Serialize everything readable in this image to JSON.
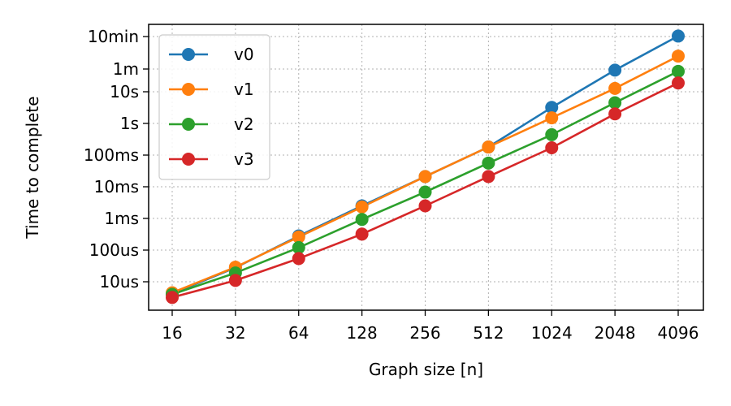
{
  "chart_data": {
    "type": "line",
    "xlabel": "Graph size [n]",
    "ylabel": "Time to complete",
    "x_scale": "log2",
    "y_scale": "log",
    "categories": [
      "16",
      "32",
      "64",
      "128",
      "256",
      "512",
      "1024",
      "2048",
      "4096"
    ],
    "x": [
      16,
      32,
      64,
      128,
      256,
      512,
      1024,
      2048,
      4096
    ],
    "y_ticks": [
      {
        "label": "10us",
        "seconds": 1e-05
      },
      {
        "label": "100us",
        "seconds": 0.0001
      },
      {
        "label": "1ms",
        "seconds": 0.001
      },
      {
        "label": "10ms",
        "seconds": 0.01
      },
      {
        "label": "100ms",
        "seconds": 0.1
      },
      {
        "label": "1s",
        "seconds": 1
      },
      {
        "label": "10s",
        "seconds": 10
      },
      {
        "label": "1m",
        "seconds": 60
      },
      {
        "label": "10min",
        "seconds": 600
      }
    ],
    "ylim_seconds": [
      3.2e-06,
      1200
    ],
    "grid": true,
    "legend_position": "top-left",
    "series": [
      {
        "name": "v0",
        "color": "#1f77b4",
        "values": [
          4.2e-06,
          2.8e-05,
          0.00028,
          0.0025,
          0.021,
          0.18,
          3.2,
          55,
          620
        ]
      },
      {
        "name": "v1",
        "color": "#ff7f0e",
        "values": [
          4.5e-06,
          2.9e-05,
          0.00026,
          0.0023,
          0.021,
          0.18,
          1.5,
          13,
          150
        ]
      },
      {
        "name": "v2",
        "color": "#2ca02c",
        "values": [
          4e-06,
          1.9e-05,
          0.00012,
          0.00093,
          0.0068,
          0.056,
          0.44,
          4.5,
          50
        ]
      },
      {
        "name": "v3",
        "color": "#d62728",
        "values": [
          3.2e-06,
          1.1e-05,
          5.4e-05,
          0.00032,
          0.0025,
          0.021,
          0.17,
          2.0,
          20
        ]
      }
    ]
  }
}
